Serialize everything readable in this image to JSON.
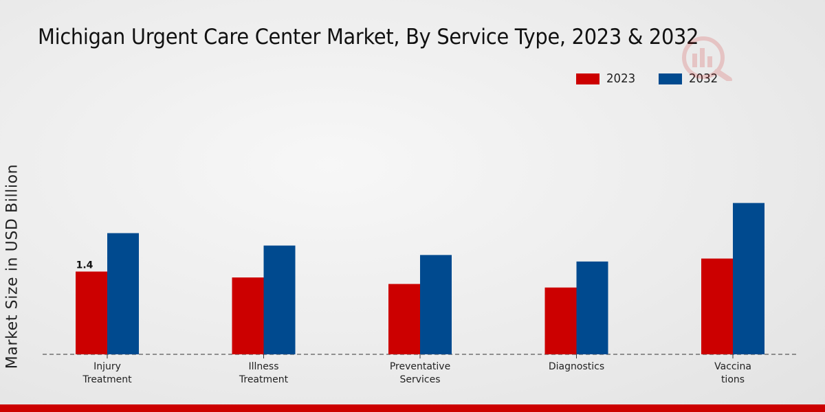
{
  "chart_data": {
    "type": "bar",
    "title": "Michigan Urgent Care Center Market, By Service Type, 2023 & 2032",
    "ylabel": "Market Size in USD Billion",
    "xlabel": "",
    "categories": [
      "Injury\nTreatment",
      "Illness\nTreatment",
      "Preventative\nServices",
      "Diagnostics",
      "Vaccina\ntions"
    ],
    "series": [
      {
        "name": "2023",
        "color": "#cc0000",
        "values": [
          1.4,
          1.3,
          1.19,
          1.13,
          1.62
        ]
      },
      {
        "name": "2032",
        "color": "#004a8f",
        "values": [
          2.05,
          1.84,
          1.68,
          1.57,
          2.56
        ]
      }
    ],
    "data_labels": [
      {
        "series": 0,
        "index": 0,
        "text": "1.4"
      }
    ],
    "ylim": [
      0,
      4.6
    ],
    "grid": false,
    "legend_position": "top-right",
    "baseline_style": "dashed"
  }
}
